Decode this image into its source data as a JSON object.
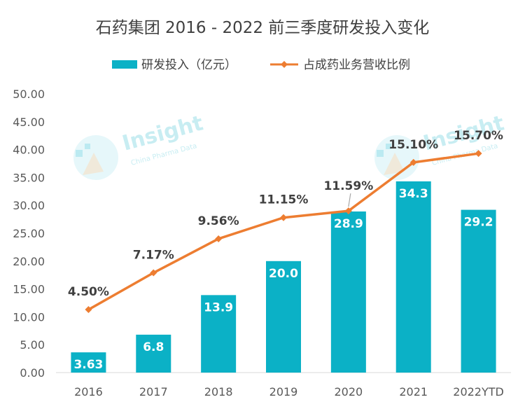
{
  "chart_data": {
    "type": "bar",
    "title": "石药集团 2016 - 2022 前三季度研发投入变化",
    "categories": [
      "2016",
      "2017",
      "2018",
      "2019",
      "2020",
      "2021",
      "2022YTD"
    ],
    "series": [
      {
        "name": "研发投入（亿元）",
        "type": "bar",
        "values": [
          3.63,
          6.8,
          13.9,
          20.0,
          28.9,
          34.3,
          29.2
        ],
        "labels": [
          "3.63",
          "6.8",
          "13.9",
          "20.0",
          "28.9",
          "34.3",
          "29.2"
        ],
        "color": "#0bb1c6"
      },
      {
        "name": "占成药业务营收比例",
        "type": "line",
        "values": [
          4.5,
          7.17,
          9.56,
          11.15,
          11.59,
          15.1,
          15.7
        ],
        "labels": [
          "4.50%",
          "7.17%",
          "9.56%",
          "11.15%",
          "11.59%",
          "15.10%",
          "15.70%"
        ],
        "color": "#ed7d31"
      }
    ],
    "line_plot_values_on_left_axis": [
      11.3,
      17.9,
      24.0,
      27.8,
      29.0,
      37.7,
      39.3
    ],
    "ylim": [
      0,
      50
    ],
    "yticks": [
      "0.00",
      "5.00",
      "10.00",
      "15.00",
      "20.00",
      "25.00",
      "30.00",
      "35.00",
      "40.00",
      "45.00",
      "50.00"
    ],
    "grid": false,
    "legend_position": "top"
  },
  "watermark": {
    "text": "Insight",
    "subtext": "China Pharma Data"
  }
}
